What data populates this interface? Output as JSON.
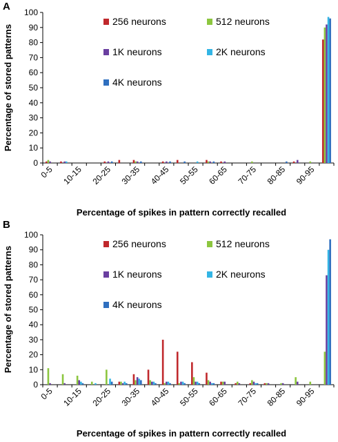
{
  "chart_data": [
    {
      "panel_label": "A",
      "type": "bar",
      "xlabel": "Percentage of spikes in pattern correctly recalled",
      "ylabel": "Percentage of stored patterns",
      "ylim": [
        0,
        100
      ],
      "yticks": [
        0,
        10,
        20,
        30,
        40,
        50,
        60,
        70,
        80,
        90,
        100
      ],
      "tick_labels": [
        "0-5",
        "10-15",
        "20-25",
        "30-35",
        "40-45",
        "50-55",
        "60-65",
        "70-75",
        "80-85",
        "90-95"
      ],
      "categories": [
        "0-5",
        "5-10",
        "10-15",
        "15-20",
        "20-25",
        "25-30",
        "30-35",
        "35-40",
        "40-45",
        "45-50",
        "50-55",
        "55-60",
        "60-65",
        "65-70",
        "70-75",
        "75-80",
        "80-85",
        "85-90",
        "90-95",
        "95-100"
      ],
      "legend_position": "top-center",
      "series": [
        {
          "name": "256 neurons",
          "color": "#c0282c",
          "values": [
            1,
            1,
            0,
            0,
            1,
            2,
            2,
            0,
            1,
            2,
            0,
            2,
            1,
            0,
            0,
            0,
            0,
            1,
            0,
            82
          ]
        },
        {
          "name": "512 neurons",
          "color": "#8cc63f",
          "values": [
            2,
            0,
            0,
            0,
            0,
            0,
            1,
            0,
            0,
            0,
            0,
            1,
            0,
            0,
            1,
            0,
            0,
            0,
            1,
            90
          ]
        },
        {
          "name": "1K neurons",
          "color": "#6a3fa0",
          "values": [
            1,
            1,
            0,
            0,
            1,
            0,
            1,
            0,
            1,
            0,
            0,
            1,
            1,
            0,
            0,
            0,
            0,
            2,
            0,
            92
          ]
        },
        {
          "name": "2K neurons",
          "color": "#33b5e5",
          "values": [
            0,
            1,
            0,
            0,
            0,
            0,
            0,
            0,
            0,
            0,
            1,
            0,
            0,
            0,
            0,
            0,
            0,
            0,
            0,
            97
          ]
        },
        {
          "name": "4K neurons",
          "color": "#2f6fbf",
          "values": [
            0,
            0,
            0,
            0,
            1,
            0,
            1,
            0,
            1,
            1,
            0,
            1,
            0,
            0,
            0,
            0,
            1,
            0,
            0,
            96
          ]
        }
      ]
    },
    {
      "panel_label": "B",
      "type": "bar",
      "xlabel": "Percentage of spikes in pattern correctly recalled",
      "ylabel": "Percentage of stored patterns",
      "ylim": [
        0,
        100
      ],
      "yticks": [
        0,
        10,
        20,
        30,
        40,
        50,
        60,
        70,
        80,
        90,
        100
      ],
      "tick_labels": [
        "0-5",
        "10-15",
        "20-25",
        "30-35",
        "40-45",
        "50-55",
        "60-65",
        "70-75",
        "80-85",
        "90-95"
      ],
      "categories": [
        "0-5",
        "5-10",
        "10-15",
        "15-20",
        "20-25",
        "25-30",
        "30-35",
        "35-40",
        "40-45",
        "45-50",
        "50-55",
        "55-60",
        "60-65",
        "65-70",
        "70-75",
        "75-80",
        "80-85",
        "85-90",
        "90-95",
        "95-100"
      ],
      "legend_position": "top-center",
      "series": [
        {
          "name": "256 neurons",
          "color": "#c0282c",
          "values": [
            0,
            0,
            0,
            0,
            0,
            2,
            7,
            10,
            30,
            22,
            15,
            8,
            2,
            1,
            1,
            1,
            0,
            0,
            0,
            0
          ]
        },
        {
          "name": "512 neurons",
          "color": "#8cc63f",
          "values": [
            11,
            7,
            6,
            2,
            10,
            2,
            3,
            3,
            1,
            1,
            5,
            3,
            2,
            2,
            3,
            1,
            1,
            5,
            2,
            22
          ]
        },
        {
          "name": "1K neurons",
          "color": "#6a3fa0",
          "values": [
            1,
            1,
            3,
            0,
            0,
            1,
            5,
            2,
            2,
            2,
            2,
            2,
            2,
            1,
            2,
            1,
            1,
            2,
            0,
            73
          ]
        },
        {
          "name": "2K neurons",
          "color": "#33b5e5",
          "values": [
            0,
            0,
            2,
            1,
            4,
            2,
            4,
            2,
            2,
            2,
            2,
            1,
            0,
            0,
            1,
            0,
            0,
            0,
            0,
            90
          ]
        },
        {
          "name": "4K neurons",
          "color": "#2f6fbf",
          "values": [
            0,
            0,
            1,
            0,
            2,
            1,
            3,
            1,
            1,
            1,
            1,
            1,
            0,
            0,
            1,
            0,
            0,
            0,
            0,
            97
          ]
        }
      ]
    }
  ]
}
